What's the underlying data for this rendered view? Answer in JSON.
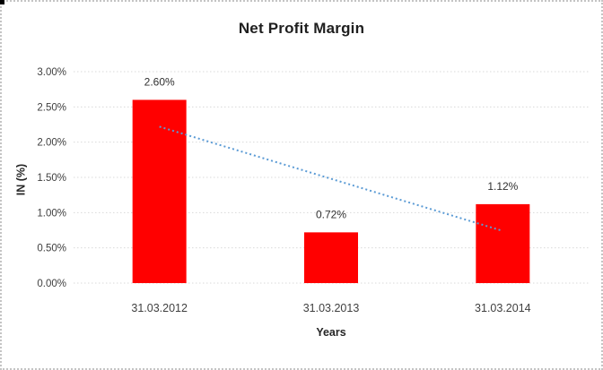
{
  "chart_data": {
    "type": "bar",
    "title": "Net Profit Margin",
    "xlabel": "Years",
    "ylabel": "IN (%)",
    "categories": [
      "31.03.2012",
      "31.03.2013",
      "31.03.2014"
    ],
    "values": [
      2.6,
      0.72,
      1.12
    ],
    "data_labels": [
      "2.60%",
      "0.72%",
      "1.12%"
    ],
    "y_ticks": [
      "0.00%",
      "0.50%",
      "1.00%",
      "1.50%",
      "2.00%",
      "2.50%",
      "3.00%"
    ],
    "ylim": [
      0,
      3.0
    ],
    "grid": true,
    "legend": "none",
    "trendline": {
      "type": "linear",
      "style": "dotted",
      "start_value": 2.22,
      "end_value": 0.74
    },
    "colors": {
      "bar": "#ff0000",
      "trendline": "#5b9bd5",
      "gridline": "#d9d9d9",
      "tick_text": "#3f3f3f",
      "category_text": "#3f3f3f",
      "data_label_text": "#303030",
      "title_text": "#1f1f1f",
      "frame_border": "#c4c4c4",
      "corner_marker": "#000000"
    }
  }
}
